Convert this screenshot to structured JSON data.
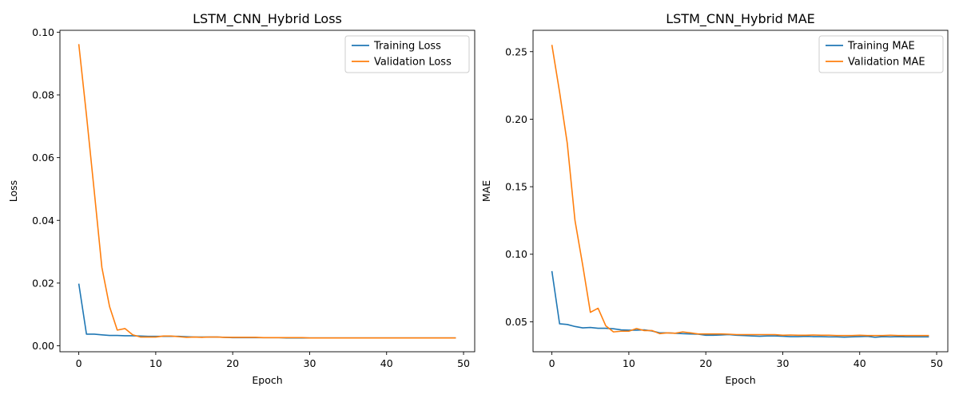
{
  "chart_data": [
    {
      "type": "line",
      "title": "LSTM_CNN_Hybrid Loss",
      "xlabel": "Epoch",
      "ylabel": "Loss",
      "xlim": [
        -2.45,
        51.45
      ],
      "ylim": [
        -0.0019,
        0.1006
      ],
      "xticks": [
        0,
        10,
        20,
        30,
        40,
        50
      ],
      "yticks": [
        0.0,
        0.02,
        0.04,
        0.06,
        0.08,
        0.1
      ],
      "ytick_labels": [
        "0.00",
        "0.02",
        "0.04",
        "0.06",
        "0.08",
        "0.10"
      ],
      "legend_position": "top-right",
      "grid": false,
      "series": [
        {
          "name": "Training Loss",
          "color": "#1f77b4",
          "x": [
            0,
            1,
            2,
            3,
            4,
            5,
            6,
            7,
            8,
            9,
            10,
            11,
            12,
            13,
            14,
            15,
            16,
            17,
            18,
            19,
            20,
            21,
            22,
            23,
            24,
            25,
            26,
            27,
            28,
            29,
            30,
            31,
            32,
            33,
            34,
            35,
            36,
            37,
            38,
            39,
            40,
            41,
            42,
            43,
            44,
            45,
            46,
            47,
            48,
            49
          ],
          "values": [
            0.0198,
            0.0037,
            0.0037,
            0.0035,
            0.0033,
            0.0033,
            0.0032,
            0.0032,
            0.0031,
            0.003,
            0.003,
            0.003,
            0.003,
            0.003,
            0.0029,
            0.0028,
            0.0028,
            0.0028,
            0.0028,
            0.0027,
            0.0026,
            0.0026,
            0.0026,
            0.0026,
            0.0026,
            0.0026,
            0.0026,
            0.0025,
            0.0025,
            0.0025,
            0.0025,
            0.0025,
            0.0025,
            0.0025,
            0.0025,
            0.0025,
            0.0025,
            0.0025,
            0.0025,
            0.0025,
            0.0025,
            0.0025,
            0.0025,
            0.0025,
            0.0025,
            0.0025,
            0.0025,
            0.0025,
            0.0025,
            0.0025
          ]
        },
        {
          "name": "Validation Loss",
          "color": "#ff7f0e",
          "x": [
            0,
            1,
            2,
            3,
            4,
            5,
            6,
            7,
            8,
            9,
            10,
            11,
            12,
            13,
            14,
            15,
            16,
            17,
            18,
            19,
            20,
            21,
            22,
            23,
            24,
            25,
            26,
            27,
            28,
            29,
            30,
            31,
            32,
            33,
            34,
            35,
            36,
            37,
            38,
            39,
            40,
            41,
            42,
            43,
            44,
            45,
            46,
            47,
            48,
            49
          ],
          "values": [
            0.0962,
            0.0735,
            0.0495,
            0.025,
            0.0125,
            0.005,
            0.0055,
            0.0035,
            0.0028,
            0.0028,
            0.0028,
            0.0031,
            0.0031,
            0.0029,
            0.0027,
            0.0028,
            0.0027,
            0.0028,
            0.0028,
            0.0027,
            0.0027,
            0.0027,
            0.0027,
            0.0027,
            0.0026,
            0.0026,
            0.0026,
            0.0026,
            0.0026,
            0.0026,
            0.0025,
            0.0025,
            0.0025,
            0.0025,
            0.0025,
            0.0025,
            0.0025,
            0.0025,
            0.0025,
            0.0025,
            0.0025,
            0.0025,
            0.0025,
            0.0025,
            0.0025,
            0.0025,
            0.0025,
            0.0025,
            0.0025,
            0.0025
          ]
        }
      ]
    },
    {
      "type": "line",
      "title": "LSTM_CNN_Hybrid MAE",
      "xlabel": "Epoch",
      "ylabel": "MAE",
      "xlim": [
        -2.45,
        51.45
      ],
      "ylim": [
        0.0278,
        0.2658
      ],
      "xticks": [
        0,
        10,
        20,
        30,
        40,
        50
      ],
      "yticks": [
        0.05,
        0.1,
        0.15,
        0.2,
        0.25
      ],
      "ytick_labels": [
        "0.05",
        "0.10",
        "0.15",
        "0.20",
        "0.25"
      ],
      "legend_position": "top-right",
      "grid": false,
      "series": [
        {
          "name": "Training MAE",
          "color": "#1f77b4",
          "x": [
            0,
            1,
            2,
            3,
            4,
            5,
            6,
            7,
            8,
            9,
            10,
            11,
            12,
            13,
            14,
            15,
            16,
            17,
            18,
            19,
            20,
            21,
            22,
            23,
            24,
            25,
            26,
            27,
            28,
            29,
            30,
            31,
            32,
            33,
            34,
            35,
            36,
            37,
            38,
            39,
            40,
            41,
            42,
            43,
            44,
            45,
            46,
            47,
            48,
            49
          ],
          "values": [
            0.0875,
            0.0485,
            0.048,
            0.0465,
            0.0455,
            0.0458,
            0.0452,
            0.0452,
            0.0448,
            0.044,
            0.0438,
            0.0438,
            0.044,
            0.0432,
            0.0418,
            0.0418,
            0.0415,
            0.0412,
            0.041,
            0.0408,
            0.04,
            0.04,
            0.0402,
            0.0405,
            0.04,
            0.0398,
            0.0395,
            0.0393,
            0.0395,
            0.0395,
            0.0393,
            0.039,
            0.039,
            0.0392,
            0.039,
            0.039,
            0.0388,
            0.0388,
            0.0386,
            0.0388,
            0.039,
            0.0392,
            0.0385,
            0.039,
            0.0388,
            0.039,
            0.0388,
            0.0388,
            0.0388,
            0.0388
          ]
        },
        {
          "name": "Validation MAE",
          "color": "#ff7f0e",
          "x": [
            0,
            1,
            2,
            3,
            4,
            5,
            6,
            7,
            8,
            9,
            10,
            11,
            12,
            13,
            14,
            15,
            16,
            17,
            18,
            19,
            20,
            21,
            22,
            23,
            24,
            25,
            26,
            27,
            28,
            29,
            30,
            31,
            32,
            33,
            34,
            35,
            36,
            37,
            38,
            39,
            40,
            41,
            42,
            43,
            44,
            45,
            46,
            47,
            48,
            49
          ],
          "values": [
            0.255,
            0.22,
            0.182,
            0.125,
            0.092,
            0.057,
            0.06,
            0.047,
            0.0425,
            0.043,
            0.043,
            0.045,
            0.0435,
            0.0435,
            0.0412,
            0.0418,
            0.0415,
            0.0425,
            0.0418,
            0.041,
            0.041,
            0.041,
            0.041,
            0.0408,
            0.0405,
            0.0405,
            0.0405,
            0.0405,
            0.0405,
            0.0405,
            0.04,
            0.0402,
            0.04,
            0.04,
            0.0402,
            0.04,
            0.04,
            0.0398,
            0.0398,
            0.0398,
            0.04,
            0.0398,
            0.0398,
            0.0398,
            0.04,
            0.0398,
            0.0398,
            0.0398,
            0.0398,
            0.0398
          ]
        }
      ]
    }
  ]
}
